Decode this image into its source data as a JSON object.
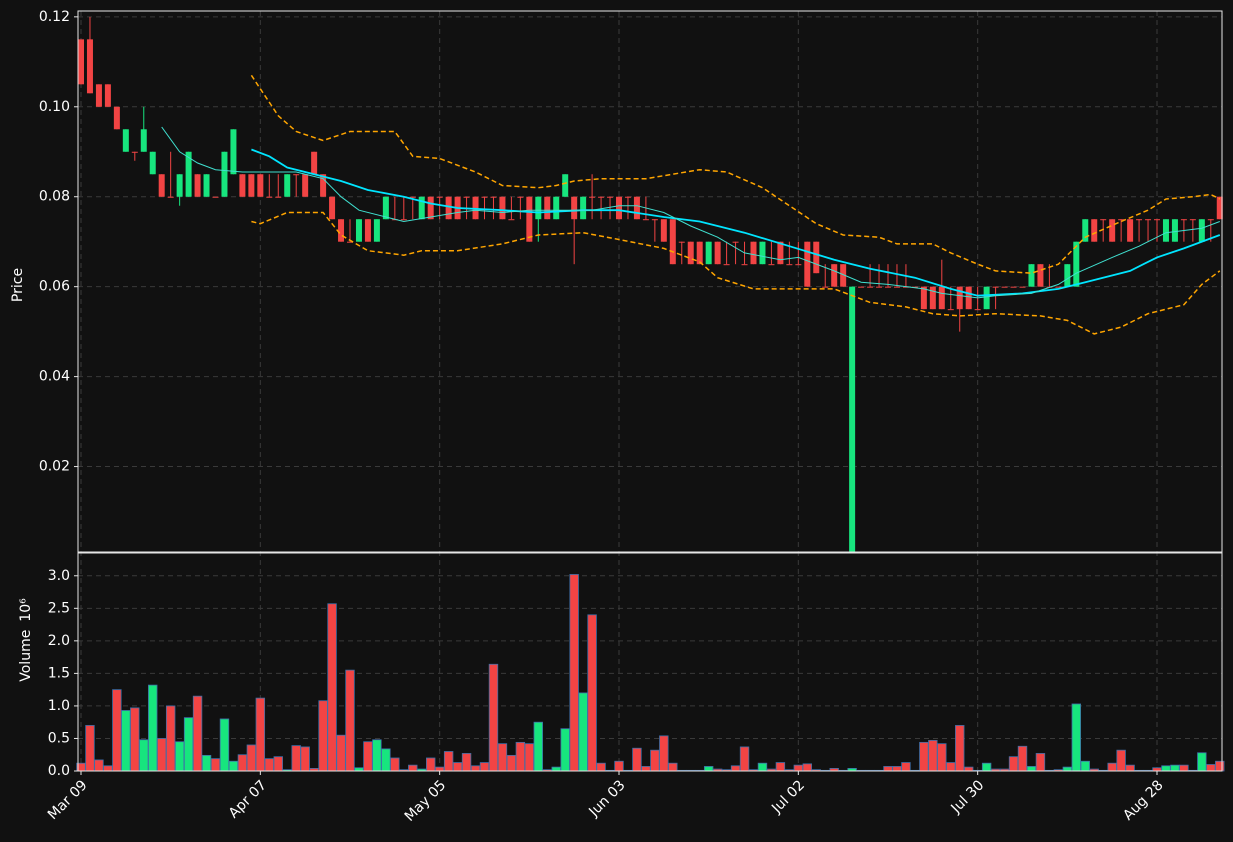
{
  "chart_data": {
    "type": "candlestick",
    "background": "#111111",
    "grid": true,
    "up_color": "#17e57e",
    "down_color": "#f24444",
    "volume_edge_color": "#3f6fa8",
    "categories": [
      "Mar 09",
      null,
      null,
      null,
      null,
      null,
      null,
      null,
      null,
      null,
      null,
      null,
      null,
      null,
      null,
      null,
      null,
      null,
      null,
      null,
      "Apr 07",
      null,
      null,
      null,
      null,
      null,
      null,
      null,
      null,
      null,
      null,
      null,
      null,
      null,
      null,
      null,
      null,
      null,
      null,
      null,
      "May 05",
      null,
      null,
      null,
      null,
      null,
      null,
      null,
      null,
      null,
      null,
      null,
      null,
      null,
      null,
      null,
      null,
      null,
      null,
      null,
      "Jun 03",
      null,
      null,
      null,
      null,
      null,
      null,
      null,
      null,
      null,
      null,
      null,
      null,
      null,
      null,
      null,
      null,
      null,
      null,
      null,
      "Jul 02",
      null,
      null,
      null,
      null,
      null,
      null,
      null,
      null,
      null,
      null,
      null,
      null,
      null,
      null,
      null,
      null,
      null,
      null,
      null,
      "Jul 30",
      null,
      null,
      null,
      null,
      null,
      null,
      null,
      null,
      null,
      null,
      null,
      null,
      null,
      null,
      null,
      null,
      null,
      null,
      null,
      "Aug 28",
      null,
      null,
      null,
      null,
      null,
      null,
      null
    ],
    "open": [
      0.115,
      0.115,
      0.105,
      0.105,
      0.1,
      0.09,
      0.09,
      0.09,
      0.085,
      0.085,
      0.08,
      0.08,
      0.08,
      0.085,
      0.08,
      0.08,
      0.08,
      0.085,
      0.085,
      0.085,
      0.085,
      0.08,
      0.08,
      0.08,
      0.085,
      0.085,
      0.09,
      0.085,
      0.08,
      0.075,
      0.07,
      0.07,
      0.075,
      0.07,
      0.075,
      0.075,
      0.075,
      0.08,
      0.075,
      0.08,
      0.08,
      0.08,
      0.08,
      0.08,
      0.08,
      0.08,
      0.08,
      0.08,
      0.075,
      0.08,
      0.08,
      0.075,
      0.08,
      0.075,
      0.08,
      0.08,
      0.075,
      0.08,
      0.08,
      0.08,
      0.08,
      0.08,
      0.08,
      0.075,
      0.075,
      0.075,
      0.075,
      0.07,
      0.07,
      0.07,
      0.065,
      0.07,
      0.065,
      0.07,
      0.065,
      0.07,
      0.065,
      0.065,
      0.07,
      0.065,
      0.065,
      0.07,
      0.07,
      0.06,
      0.065,
      0.065,
      0.001,
      0.06,
      0.06,
      0.06,
      0.06,
      0.06,
      0.06,
      0.06,
      0.06,
      0.06,
      0.06,
      0.055,
      0.06,
      0.06,
      0.055,
      0.055,
      0.06,
      0.06,
      0.06,
      0.06,
      0.06,
      0.065,
      0.06,
      0.06,
      0.06,
      0.06,
      0.07,
      0.075,
      0.075,
      0.075,
      0.075,
      0.075,
      0.075,
      0.075,
      0.075,
      0.07,
      0.07,
      0.075,
      0.075,
      0.07,
      0.075,
      0.08
    ],
    "high": [
      0.115,
      0.12,
      0.105,
      0.105,
      0.1,
      0.095,
      0.09,
      0.1,
      0.09,
      0.085,
      0.09,
      0.085,
      0.09,
      0.085,
      0.085,
      0.08,
      0.09,
      0.095,
      0.085,
      0.085,
      0.085,
      0.085,
      0.085,
      0.085,
      0.085,
      0.085,
      0.09,
      0.085,
      0.08,
      0.075,
      0.075,
      0.075,
      0.075,
      0.075,
      0.08,
      0.08,
      0.08,
      0.08,
      0.08,
      0.08,
      0.08,
      0.08,
      0.08,
      0.08,
      0.08,
      0.08,
      0.08,
      0.08,
      0.08,
      0.08,
      0.08,
      0.08,
      0.08,
      0.08,
      0.085,
      0.08,
      0.08,
      0.085,
      0.08,
      0.08,
      0.08,
      0.08,
      0.08,
      0.08,
      0.075,
      0.075,
      0.075,
      0.07,
      0.07,
      0.07,
      0.07,
      0.07,
      0.07,
      0.07,
      0.07,
      0.07,
      0.07,
      0.07,
      0.07,
      0.07,
      0.07,
      0.07,
      0.07,
      0.065,
      0.065,
      0.065,
      0.06,
      0.06,
      0.065,
      0.065,
      0.065,
      0.065,
      0.065,
      0.06,
      0.06,
      0.06,
      0.066,
      0.06,
      0.06,
      0.06,
      0.06,
      0.06,
      0.06,
      0.06,
      0.06,
      0.06,
      0.065,
      0.065,
      0.065,
      0.06,
      0.065,
      0.07,
      0.075,
      0.075,
      0.075,
      0.075,
      0.075,
      0.075,
      0.075,
      0.075,
      0.075,
      0.075,
      0.075,
      0.075,
      0.075,
      0.075,
      0.075,
      0.08
    ],
    "low": [
      0.105,
      0.103,
      0.1,
      0.1,
      0.095,
      0.09,
      0.088,
      0.09,
      0.085,
      0.08,
      0.08,
      0.078,
      0.08,
      0.08,
      0.08,
      0.08,
      0.08,
      0.085,
      0.08,
      0.08,
      0.08,
      0.08,
      0.08,
      0.08,
      0.08,
      0.08,
      0.085,
      0.08,
      0.075,
      0.07,
      0.07,
      0.07,
      0.07,
      0.07,
      0.075,
      0.075,
      0.075,
      0.075,
      0.075,
      0.075,
      0.075,
      0.075,
      0.075,
      0.075,
      0.075,
      0.075,
      0.075,
      0.075,
      0.075,
      0.075,
      0.07,
      0.07,
      0.075,
      0.075,
      0.08,
      0.065,
      0.075,
      0.075,
      0.075,
      0.075,
      0.075,
      0.075,
      0.075,
      0.075,
      0.07,
      0.07,
      0.065,
      0.065,
      0.065,
      0.065,
      0.065,
      0.065,
      0.065,
      0.065,
      0.065,
      0.065,
      0.065,
      0.065,
      0.065,
      0.065,
      0.065,
      0.06,
      0.063,
      0.06,
      0.06,
      0.06,
      0.001,
      0.06,
      0.06,
      0.06,
      0.06,
      0.06,
      0.06,
      0.06,
      0.055,
      0.055,
      0.055,
      0.055,
      0.05,
      0.055,
      0.055,
      0.055,
      0.055,
      0.06,
      0.06,
      0.06,
      0.06,
      0.06,
      0.06,
      0.06,
      0.06,
      0.06,
      0.07,
      0.07,
      0.07,
      0.07,
      0.07,
      0.07,
      0.07,
      0.07,
      0.07,
      0.07,
      0.07,
      0.07,
      0.07,
      0.07,
      0.07,
      0.075
    ],
    "close": [
      0.105,
      0.103,
      0.1,
      0.1,
      0.095,
      0.095,
      0.09,
      0.095,
      0.09,
      0.08,
      0.08,
      0.085,
      0.09,
      0.08,
      0.085,
      0.08,
      0.09,
      0.095,
      0.08,
      0.08,
      0.08,
      0.08,
      0.08,
      0.085,
      0.085,
      0.08,
      0.085,
      0.08,
      0.075,
      0.07,
      0.07,
      0.075,
      0.07,
      0.075,
      0.08,
      0.075,
      0.075,
      0.08,
      0.08,
      0.075,
      0.08,
      0.075,
      0.075,
      0.08,
      0.075,
      0.08,
      0.08,
      0.075,
      0.075,
      0.08,
      0.07,
      0.08,
      0.075,
      0.08,
      0.085,
      0.075,
      0.08,
      0.08,
      0.08,
      0.08,
      0.075,
      0.08,
      0.075,
      0.075,
      0.075,
      0.07,
      0.065,
      0.07,
      0.065,
      0.065,
      0.07,
      0.065,
      0.065,
      0.07,
      0.065,
      0.065,
      0.07,
      0.065,
      0.065,
      0.065,
      0.065,
      0.06,
      0.063,
      0.06,
      0.06,
      0.06,
      0.06,
      0.06,
      0.06,
      0.06,
      0.06,
      0.06,
      0.06,
      0.06,
      0.055,
      0.055,
      0.055,
      0.055,
      0.055,
      0.055,
      0.055,
      0.06,
      0.06,
      0.06,
      0.06,
      0.06,
      0.065,
      0.06,
      0.06,
      0.06,
      0.065,
      0.07,
      0.075,
      0.07,
      0.075,
      0.07,
      0.075,
      0.07,
      0.075,
      0.075,
      0.075,
      0.075,
      0.075,
      0.075,
      0.075,
      0.075,
      0.075,
      0.075
    ],
    "volume": [
      0.12,
      0.7,
      0.17,
      0.08,
      1.25,
      0.93,
      0.97,
      0.48,
      1.32,
      0.5,
      1.0,
      0.45,
      0.82,
      1.15,
      0.24,
      0.19,
      0.8,
      0.15,
      0.25,
      0.4,
      1.12,
      0.19,
      0.22,
      0.02,
      0.39,
      0.37,
      0.04,
      1.08,
      2.57,
      0.55,
      1.55,
      0.05,
      0.45,
      0.48,
      0.34,
      0.2,
      0.02,
      0.09,
      0.03,
      0.2,
      0.06,
      0.3,
      0.13,
      0.27,
      0.08,
      0.13,
      1.64,
      0.42,
      0.24,
      0.44,
      0.42,
      0.75,
      0.02,
      0.06,
      0.65,
      3.02,
      1.2,
      2.4,
      0.12,
      0.01,
      0.15,
      0.01,
      0.35,
      0.07,
      0.32,
      0.54,
      0.12,
      0.01,
      0.01,
      0.01,
      0.07,
      0.03,
      0.02,
      0.08,
      0.37,
      0.02,
      0.12,
      0.03,
      0.13,
      0.02,
      0.09,
      0.11,
      0.02,
      0.01,
      0.04,
      0.01,
      0.04,
      0.01,
      0.01,
      0.01,
      0.07,
      0.07,
      0.13,
      0.01,
      0.44,
      0.47,
      0.42,
      0.13,
      0.7,
      0.06,
      0.01,
      0.12,
      0.03,
      0.03,
      0.22,
      0.38,
      0.07,
      0.27,
      0.01,
      0.02,
      0.06,
      1.03,
      0.15,
      0.03,
      0.01,
      0.12,
      0.32,
      0.09,
      0.01,
      0.01,
      0.05,
      0.08,
      0.09,
      0.09,
      0.01,
      0.28,
      0.1,
      0.15
    ],
    "lines": [
      {
        "color": "#00e5ff",
        "width": 1.8,
        "dashed": false,
        "x": [
          19,
          21,
          23,
          26,
          29,
          32,
          36,
          39,
          42,
          47,
          51,
          56,
          60,
          65,
          69,
          74,
          79,
          84,
          88,
          93,
          97,
          100,
          105,
          109,
          112,
          117,
          120,
          123,
          127
        ],
        "values": [
          0.0905,
          0.089,
          0.0865,
          0.085,
          0.0835,
          0.0815,
          0.08,
          0.0785,
          0.0775,
          0.077,
          0.0765,
          0.077,
          0.077,
          0.0755,
          0.0745,
          0.072,
          0.069,
          0.066,
          0.064,
          0.062,
          0.0595,
          0.058,
          0.0585,
          0.0595,
          0.061,
          0.0635,
          0.0665,
          0.0685,
          0.0715
        ]
      },
      {
        "color": "#40e0d0",
        "width": 1,
        "dashed": false,
        "x": [
          9,
          11,
          13,
          15,
          18,
          21,
          24,
          27,
          29,
          31,
          34,
          36,
          39,
          42,
          44,
          47,
          50,
          53,
          57,
          60,
          62,
          65,
          68,
          71,
          74,
          78,
          80,
          84,
          87,
          90,
          94,
          96,
          100,
          102,
          106,
          109,
          111,
          115,
          118,
          121,
          125,
          127
        ],
        "values": [
          0.0955,
          0.09,
          0.0875,
          0.086,
          0.0855,
          0.0855,
          0.0855,
          0.084,
          0.08,
          0.077,
          0.0755,
          0.0745,
          0.0755,
          0.0765,
          0.077,
          0.0765,
          0.077,
          0.077,
          0.077,
          0.078,
          0.078,
          0.0765,
          0.0735,
          0.071,
          0.0675,
          0.066,
          0.0665,
          0.0635,
          0.061,
          0.0605,
          0.0595,
          0.0585,
          0.0575,
          0.058,
          0.0585,
          0.0605,
          0.063,
          0.0665,
          0.069,
          0.072,
          0.073,
          0.0745
        ]
      },
      {
        "color": "#ffa500",
        "width": 1.5,
        "dashed": true,
        "x": [
          19,
          20,
          22,
          24,
          27,
          30,
          35,
          37,
          40,
          44,
          47,
          51,
          53,
          55,
          58,
          63,
          69,
          72,
          76,
          79,
          82,
          85,
          89,
          91,
          95,
          97,
          100,
          102,
          106,
          109,
          112,
          116,
          119,
          121,
          124,
          126,
          127
        ],
        "values": [
          0.107,
          0.104,
          0.098,
          0.0945,
          0.0925,
          0.0945,
          0.0945,
          0.089,
          0.0885,
          0.0855,
          0.0825,
          0.082,
          0.0825,
          0.0835,
          0.084,
          0.084,
          0.086,
          0.0855,
          0.082,
          0.078,
          0.074,
          0.0715,
          0.071,
          0.0695,
          0.0695,
          0.0675,
          0.065,
          0.0635,
          0.063,
          0.065,
          0.071,
          0.0745,
          0.077,
          0.0795,
          0.08,
          0.0805,
          0.0795
        ]
      },
      {
        "color": "#ffa500",
        "width": 1.5,
        "dashed": true,
        "x": [
          19,
          20,
          23,
          27,
          29,
          32,
          36,
          38,
          42,
          47,
          51,
          56,
          60,
          65,
          69,
          71,
          75,
          79,
          84,
          88,
          92,
          95,
          98,
          102,
          107,
          110,
          113,
          116,
          119,
          123,
          125,
          127
        ],
        "values": [
          0.0745,
          0.074,
          0.0765,
          0.0765,
          0.0715,
          0.068,
          0.067,
          0.068,
          0.068,
          0.0695,
          0.0715,
          0.072,
          0.0705,
          0.0685,
          0.0655,
          0.062,
          0.0595,
          0.0595,
          0.0595,
          0.0565,
          0.0555,
          0.054,
          0.0535,
          0.054,
          0.0535,
          0.0525,
          0.0495,
          0.051,
          0.054,
          0.056,
          0.0605,
          0.0635
        ]
      }
    ],
    "ylabel": "Price",
    "ylim": [
      0.001,
      0.1213
    ],
    "yticks": [
      {
        "value": 0.02,
        "label": "0.02"
      },
      {
        "value": 0.04,
        "label": "0.04"
      },
      {
        "value": 0.06,
        "label": "0.06"
      },
      {
        "value": 0.08,
        "label": "0.08"
      },
      {
        "value": 0.1,
        "label": "0.10"
      },
      {
        "value": 0.12,
        "label": "0.12"
      }
    ],
    "volume_label": "Volume",
    "volume_scale": "10⁶",
    "volume_ylim": [
      0,
      3.35
    ],
    "volume_yticks": [
      {
        "value": 0,
        "label": "0.0"
      },
      {
        "value": 0.5,
        "label": "0.5"
      },
      {
        "value": 1,
        "label": "1.0"
      },
      {
        "value": 1.5,
        "label": "1.5"
      },
      {
        "value": 2,
        "label": "2.0"
      },
      {
        "value": 2.5,
        "label": "2.5"
      },
      {
        "value": 3,
        "label": "3.0"
      }
    ]
  }
}
